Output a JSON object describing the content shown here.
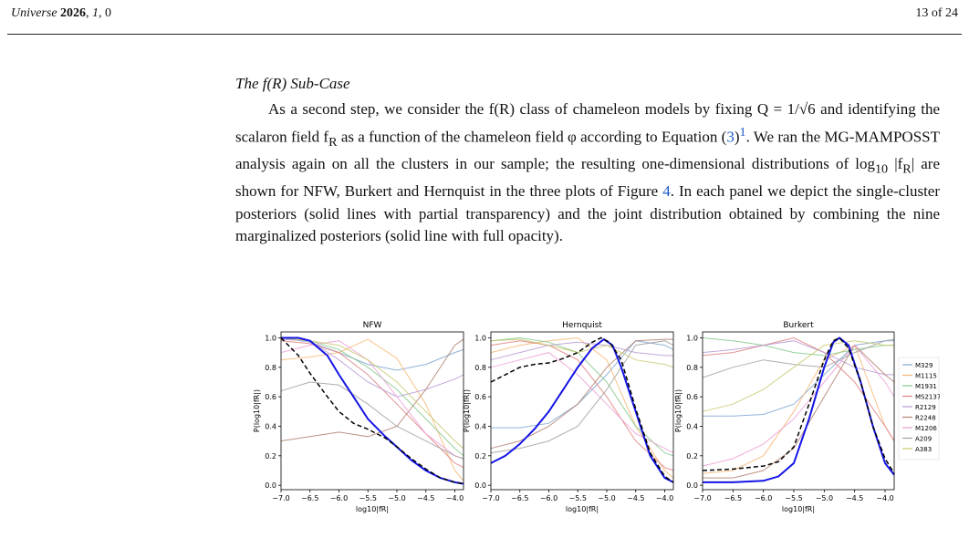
{
  "header": {
    "journal": "Universe",
    "year": "2026",
    "volume": "1",
    "article": "0",
    "page": "13 of 24"
  },
  "section": {
    "title": "The f(R) Sub-Case"
  },
  "paragraph": {
    "text_1": "As a second step, we consider the f(R) class of chameleon models by fixing Q = 1/√6 and identifying the scalaron field f",
    "text_2": " as a function of the chameleon field φ according to Equation (",
    "eq_ref": "3",
    "text_3": ")",
    "footnote": "1",
    "text_4": ". We ran the MG-MAMPOSST analysis again on all the clusters in our sample; the resulting one-dimensional distributions of log",
    "text_5": " |f",
    "text_6": "| are shown for NFW, Burkert and Hernquist in the three plots of Figure ",
    "fig_ref": "4",
    "text_7": ". In each panel we depict the single-cluster posteriors (solid lines with partial transparency) and the joint distribution obtained by combining the nine marginalized posteriors (solid line with full opacity).",
    "sub_R": "R",
    "sub_10": "10"
  },
  "chart_data": [
    {
      "type": "line",
      "title": "NFW",
      "xlabel": "log10|fR|",
      "ylabel": "P(log10|fR|)",
      "xlim": [
        -7.0,
        -3.85
      ],
      "ylim": [
        -0.03,
        1.04
      ],
      "xticks": [
        "-7.0",
        "-6.5",
        "-6.0",
        "-5.5",
        "-5.0",
        "-4.5",
        "-4.0"
      ],
      "yticks": [
        "0.0",
        "0.2",
        "0.4",
        "0.6",
        "0.8",
        "1.0"
      ],
      "series": [
        {
          "name": "M329",
          "color": "#7fa6d4",
          "x": [
            -7,
            -6.5,
            -6,
            -5.5,
            -5,
            -4.5,
            -4,
            -3.85
          ],
          "y": [
            1.0,
            0.97,
            0.9,
            0.82,
            0.78,
            0.82,
            0.9,
            0.92
          ]
        },
        {
          "name": "M1115",
          "color": "#f7b774",
          "x": [
            -7,
            -6.5,
            -6,
            -5.5,
            -5,
            -4.5,
            -4,
            -3.85
          ],
          "y": [
            0.85,
            0.87,
            0.9,
            0.99,
            0.86,
            0.55,
            0.1,
            0.03
          ]
        },
        {
          "name": "M1931",
          "color": "#84c98a",
          "x": [
            -7,
            -6.5,
            -6,
            -5.5,
            -5,
            -4.5,
            -4,
            -3.85
          ],
          "y": [
            1.0,
            0.98,
            0.92,
            0.8,
            0.65,
            0.45,
            0.25,
            0.2
          ]
        },
        {
          "name": "MS2137",
          "color": "#e08080",
          "x": [
            -7,
            -6.5,
            -6,
            -5.5,
            -5,
            -4.5,
            -4,
            -3.85
          ],
          "y": [
            0.98,
            0.96,
            0.9,
            0.75,
            0.55,
            0.35,
            0.15,
            0.12
          ]
        },
        {
          "name": "R2129",
          "color": "#b89ad4",
          "x": [
            -7,
            -6.5,
            -6,
            -5.5,
            -5,
            -4.5,
            -4,
            -3.85
          ],
          "y": [
            0.99,
            0.98,
            0.85,
            0.7,
            0.6,
            0.65,
            0.72,
            0.75
          ]
        },
        {
          "name": "R2248",
          "color": "#b08070",
          "x": [
            -7,
            -6.5,
            -6,
            -5.5,
            -5,
            -4.5,
            -4,
            -3.85
          ],
          "y": [
            0.3,
            0.33,
            0.36,
            0.33,
            0.4,
            0.65,
            0.95,
            0.99
          ]
        },
        {
          "name": "M1206",
          "color": "#ec9fd6",
          "x": [
            -7,
            -6.5,
            -6,
            -5.5,
            -5,
            -4.5,
            -4,
            -3.85
          ],
          "y": [
            0.9,
            0.95,
            0.98,
            0.85,
            0.6,
            0.35,
            0.2,
            0.18
          ]
        },
        {
          "name": "A209",
          "color": "#a0a0a0",
          "x": [
            -7,
            -6.5,
            -6,
            -5.5,
            -5,
            -4.5,
            -4,
            -3.85
          ],
          "y": [
            0.64,
            0.7,
            0.68,
            0.55,
            0.4,
            0.3,
            0.2,
            0.18
          ]
        },
        {
          "name": "A383",
          "color": "#c8c870",
          "x": [
            -7,
            -6.5,
            -6,
            -5.5,
            -5,
            -4.5,
            -4,
            -3.85
          ],
          "y": [
            1.0,
            0.98,
            0.95,
            0.85,
            0.7,
            0.5,
            0.3,
            0.25
          ]
        },
        {
          "name": "",
          "color": "#1414e6",
          "width": 2,
          "x": [
            -7,
            -6.7,
            -6.5,
            -6.2,
            -6,
            -5.75,
            -5.5,
            -5.2,
            -5,
            -4.75,
            -4.5,
            -4.25,
            -4,
            -3.85
          ],
          "y": [
            1.0,
            1.0,
            0.98,
            0.88,
            0.75,
            0.6,
            0.45,
            0.33,
            0.26,
            0.17,
            0.1,
            0.05,
            0.02,
            0.01
          ]
        },
        {
          "name": "",
          "color": "#000000",
          "dash": "5,3",
          "width": 1.5,
          "x": [
            -7,
            -6.7,
            -6.5,
            -6.2,
            -6,
            -5.75,
            -5.5,
            -5.2,
            -5,
            -4.75,
            -4.5,
            -4.25,
            -4,
            -3.85
          ],
          "y": [
            1.0,
            0.88,
            0.76,
            0.6,
            0.5,
            0.42,
            0.38,
            0.32,
            0.26,
            0.18,
            0.11,
            0.05,
            0.02,
            0.01
          ]
        }
      ]
    },
    {
      "type": "line",
      "title": "Hernquist",
      "xlabel": "log10|fR|",
      "ylabel": "P(log10|fR|)",
      "xlim": [
        -7.0,
        -3.85
      ],
      "ylim": [
        -0.03,
        1.04
      ],
      "xticks": [
        "-7.0",
        "-6.5",
        "-6.0",
        "-5.5",
        "-5.0",
        "-4.5",
        "-4.0"
      ],
      "yticks": [
        "0.0",
        "0.2",
        "0.4",
        "0.6",
        "0.8",
        "1.0"
      ],
      "series": [
        {
          "name": "M329",
          "color": "#7fa6d4",
          "x": [
            -7,
            -6.5,
            -6,
            -5.5,
            -5,
            -4.5,
            -4,
            -3.85
          ],
          "y": [
            0.39,
            0.39,
            0.42,
            0.55,
            0.75,
            0.98,
            0.95,
            0.92
          ]
        },
        {
          "name": "M1115",
          "color": "#f7b774",
          "x": [
            -7,
            -6.5,
            -6,
            -5.5,
            -5,
            -4.5,
            -4,
            -3.85
          ],
          "y": [
            0.9,
            0.95,
            0.98,
            1.0,
            0.85,
            0.4,
            0.1,
            0.05
          ]
        },
        {
          "name": "M1931",
          "color": "#84c98a",
          "x": [
            -7,
            -6.5,
            -6,
            -5.5,
            -5,
            -4.5,
            -4,
            -3.85
          ],
          "y": [
            0.98,
            1.0,
            0.97,
            0.9,
            0.7,
            0.4,
            0.22,
            0.2
          ]
        },
        {
          "name": "MS2137",
          "color": "#e08080",
          "x": [
            -7,
            -6.5,
            -6,
            -5.5,
            -5,
            -4.5,
            -4,
            -3.85
          ],
          "y": [
            0.95,
            0.98,
            0.95,
            0.85,
            0.6,
            0.3,
            0.12,
            0.1
          ]
        },
        {
          "name": "R2129",
          "color": "#b89ad4",
          "x": [
            -7,
            -6.5,
            -6,
            -5.5,
            -5,
            -4.5,
            -4,
            -3.85
          ],
          "y": [
            0.85,
            0.9,
            0.95,
            0.97,
            0.95,
            0.9,
            0.88,
            0.88
          ]
        },
        {
          "name": "R2248",
          "color": "#b08070",
          "x": [
            -7,
            -6.5,
            -6,
            -5.5,
            -5,
            -4.5,
            -4,
            -3.85
          ],
          "y": [
            0.25,
            0.3,
            0.4,
            0.55,
            0.8,
            0.98,
            0.99,
            0.99
          ]
        },
        {
          "name": "M1206",
          "color": "#ec9fd6",
          "x": [
            -7,
            -6.5,
            -6,
            -5.5,
            -5,
            -4.5,
            -4,
            -3.85
          ],
          "y": [
            0.8,
            0.85,
            0.9,
            0.75,
            0.55,
            0.35,
            0.25,
            0.22
          ]
        },
        {
          "name": "A209",
          "color": "#a0a0a0",
          "x": [
            -7,
            -6.5,
            -6,
            -5.5,
            -5,
            -4.5,
            -4,
            -3.85
          ],
          "y": [
            0.22,
            0.25,
            0.3,
            0.4,
            0.65,
            0.95,
            0.98,
            0.95
          ]
        },
        {
          "name": "A383",
          "color": "#c8c870",
          "x": [
            -7,
            -6.5,
            -6,
            -5.5,
            -5,
            -4.5,
            -4,
            -3.85
          ],
          "y": [
            0.98,
            0.99,
            0.95,
            0.9,
            0.95,
            0.85,
            0.82,
            0.8
          ]
        },
        {
          "name": "",
          "color": "#1414e6",
          "width": 2,
          "x": [
            -7,
            -6.75,
            -6.5,
            -6.25,
            -6,
            -5.75,
            -5.5,
            -5.25,
            -5.05,
            -4.9,
            -4.75,
            -4.5,
            -4.25,
            -4,
            -3.85
          ],
          "y": [
            0.15,
            0.2,
            0.28,
            0.38,
            0.5,
            0.65,
            0.8,
            0.93,
            0.99,
            0.95,
            0.8,
            0.5,
            0.2,
            0.05,
            0.02
          ]
        },
        {
          "name": "",
          "color": "#000000",
          "dash": "5,3",
          "width": 1.5,
          "x": [
            -7,
            -6.75,
            -6.5,
            -6.25,
            -6,
            -5.75,
            -5.5,
            -5.25,
            -5.1,
            -4.95,
            -4.75,
            -4.5,
            -4.25,
            -4,
            -3.85
          ],
          "y": [
            0.7,
            0.75,
            0.8,
            0.82,
            0.83,
            0.86,
            0.9,
            0.97,
            1.0,
            0.97,
            0.85,
            0.52,
            0.22,
            0.06,
            0.02
          ]
        }
      ]
    },
    {
      "type": "line",
      "title": "Burkert",
      "xlabel": "log10|fR|",
      "ylabel": "P(log10|fR|)",
      "xlim": [
        -7.0,
        -3.85
      ],
      "ylim": [
        -0.03,
        1.04
      ],
      "xticks": [
        "-7.0",
        "-6.5",
        "-6.0",
        "-5.5",
        "-5.0",
        "-4.5",
        "-4.0"
      ],
      "yticks": [
        "0.0",
        "0.2",
        "0.4",
        "0.6",
        "0.8",
        "1.0"
      ],
      "series": [
        {
          "name": "M329",
          "color": "#7fa6d4",
          "x": [
            -7,
            -6.5,
            -6,
            -5.5,
            -5,
            -4.5,
            -4,
            -3.85
          ],
          "y": [
            0.47,
            0.47,
            0.48,
            0.55,
            0.75,
            0.95,
            0.98,
            0.98
          ]
        },
        {
          "name": "M1115",
          "color": "#f7b774",
          "x": [
            -7,
            -6.5,
            -6,
            -5.5,
            -5,
            -4.5,
            -4,
            -3.85
          ],
          "y": [
            0.08,
            0.1,
            0.2,
            0.5,
            0.85,
            0.95,
            0.4,
            0.3
          ]
        },
        {
          "name": "M1931",
          "color": "#84c98a",
          "x": [
            -7,
            -6.5,
            -6,
            -5.5,
            -5,
            -4.5,
            -4,
            -3.85
          ],
          "y": [
            1.0,
            0.98,
            0.95,
            0.9,
            0.88,
            0.92,
            0.95,
            0.95
          ]
        },
        {
          "name": "MS2137",
          "color": "#e08080",
          "x": [
            -7,
            -6.5,
            -6,
            -5.5,
            -5,
            -4.5,
            -4,
            -3.85
          ],
          "y": [
            0.88,
            0.9,
            0.95,
            1.0,
            0.9,
            0.7,
            0.4,
            0.3
          ]
        },
        {
          "name": "R2129",
          "color": "#b89ad4",
          "x": [
            -7,
            -6.5,
            -6,
            -5.5,
            -5,
            -4.5,
            -4,
            -3.85
          ],
          "y": [
            0.9,
            0.92,
            0.95,
            0.98,
            0.9,
            0.8,
            0.75,
            0.75
          ]
        },
        {
          "name": "R2248",
          "color": "#b08070",
          "x": [
            -7,
            -6.5,
            -6,
            -5.5,
            -5,
            -4.5,
            -4,
            -3.85
          ],
          "y": [
            0.05,
            0.05,
            0.1,
            0.25,
            0.6,
            0.95,
            0.75,
            0.7
          ]
        },
        {
          "name": "M1206",
          "color": "#ec9fd6",
          "x": [
            -7,
            -6.5,
            -6,
            -5.5,
            -5,
            -4.5,
            -4,
            -3.85
          ],
          "y": [
            0.13,
            0.18,
            0.28,
            0.45,
            0.7,
            0.95,
            0.7,
            0.6
          ]
        },
        {
          "name": "A209",
          "color": "#a0a0a0",
          "x": [
            -7,
            -6.5,
            -6,
            -5.5,
            -5,
            -4.5,
            -4,
            -3.85
          ],
          "y": [
            0.73,
            0.8,
            0.85,
            0.82,
            0.8,
            0.9,
            0.98,
            0.99
          ]
        },
        {
          "name": "A383",
          "color": "#c8c870",
          "x": [
            -7,
            -6.5,
            -6,
            -5.5,
            -5,
            -4.5,
            -4,
            -3.85
          ],
          "y": [
            0.5,
            0.55,
            0.65,
            0.8,
            0.95,
            0.98,
            0.95,
            0.95
          ]
        },
        {
          "name": "",
          "color": "#1414e6",
          "width": 2,
          "x": [
            -7,
            -6.5,
            -6,
            -5.75,
            -5.5,
            -5.25,
            -5,
            -4.85,
            -4.75,
            -4.6,
            -4.4,
            -4.2,
            -4,
            -3.85
          ],
          "y": [
            0.02,
            0.02,
            0.03,
            0.06,
            0.15,
            0.45,
            0.8,
            0.97,
            1.0,
            0.95,
            0.7,
            0.4,
            0.15,
            0.07
          ]
        },
        {
          "name": "",
          "color": "#000000",
          "dash": "5,3",
          "width": 1.5,
          "x": [
            -7,
            -6.5,
            -6,
            -5.75,
            -5.5,
            -5.25,
            -5,
            -4.85,
            -4.75,
            -4.6,
            -4.4,
            -4.2,
            -4,
            -3.85
          ],
          "y": [
            0.1,
            0.11,
            0.13,
            0.16,
            0.26,
            0.55,
            0.85,
            0.98,
            1.0,
            0.93,
            0.7,
            0.4,
            0.18,
            0.08
          ]
        }
      ]
    }
  ],
  "legend": [
    "M329",
    "M1115",
    "M1931",
    "MS2137",
    "R2129",
    "R2248",
    "M1206",
    "A209",
    "A383"
  ],
  "legend_colors": [
    "#7fa6d4",
    "#f7b774",
    "#84c98a",
    "#e08080",
    "#b89ad4",
    "#b08070",
    "#ec9fd6",
    "#a0a0a0",
    "#c8c870"
  ]
}
